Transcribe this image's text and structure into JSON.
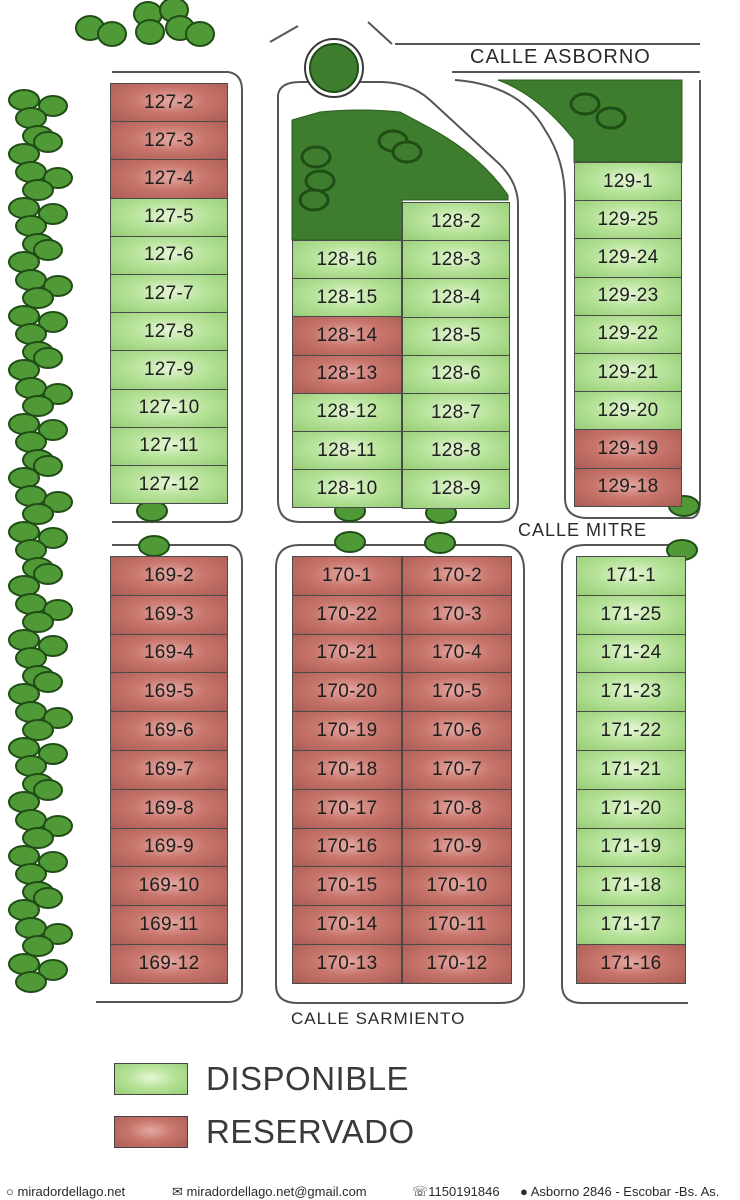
{
  "colors": {
    "disponible": "#a8d88a",
    "reservado": "#bd6b63",
    "green_area": "#3e7d2e",
    "tree": "#4f9a37",
    "tree_outline": "#1f4d15"
  },
  "streets": {
    "asborno": "CALLE ASBORNO",
    "mitre": "CALLE MITRE",
    "sarmiento": "CALLE SARMIENTO"
  },
  "legend": {
    "disponible": "DISPONIBLE",
    "reservado": "RESERVADO"
  },
  "footer": {
    "website": "miradordellago.net",
    "email": "miradordellago.net@gmail.com",
    "phone": "1150191846",
    "address": "Asborno 2846 - Escobar -Bs. As."
  },
  "blocks": {
    "b127": [
      {
        "id": "127-2",
        "status": "reservado"
      },
      {
        "id": "127-3",
        "status": "reservado"
      },
      {
        "id": "127-4",
        "status": "reservado"
      },
      {
        "id": "127-5",
        "status": "disponible"
      },
      {
        "id": "127-6",
        "status": "disponible"
      },
      {
        "id": "127-7",
        "status": "disponible"
      },
      {
        "id": "127-8",
        "status": "disponible"
      },
      {
        "id": "127-9",
        "status": "disponible"
      },
      {
        "id": "127-10",
        "status": "disponible"
      },
      {
        "id": "127-11",
        "status": "disponible"
      },
      {
        "id": "127-12",
        "status": "disponible"
      }
    ],
    "b128_left": [
      {
        "id": "128-16",
        "status": "disponible"
      },
      {
        "id": "128-15",
        "status": "disponible"
      },
      {
        "id": "128-14",
        "status": "reservado"
      },
      {
        "id": "128-13",
        "status": "reservado"
      },
      {
        "id": "128-12",
        "status": "disponible"
      },
      {
        "id": "128-11",
        "status": "disponible"
      },
      {
        "id": "128-10",
        "status": "disponible"
      }
    ],
    "b128_right": [
      {
        "id": "128-2",
        "status": "disponible"
      },
      {
        "id": "128-3",
        "status": "disponible"
      },
      {
        "id": "128-4",
        "status": "disponible"
      },
      {
        "id": "128-5",
        "status": "disponible"
      },
      {
        "id": "128-6",
        "status": "disponible"
      },
      {
        "id": "128-7",
        "status": "disponible"
      },
      {
        "id": "128-8",
        "status": "disponible"
      },
      {
        "id": "128-9",
        "status": "disponible"
      }
    ],
    "b129": [
      {
        "id": "129-1",
        "status": "disponible"
      },
      {
        "id": "129-25",
        "status": "disponible"
      },
      {
        "id": "129-24",
        "status": "disponible"
      },
      {
        "id": "129-23",
        "status": "disponible"
      },
      {
        "id": "129-22",
        "status": "disponible"
      },
      {
        "id": "129-21",
        "status": "disponible"
      },
      {
        "id": "129-20",
        "status": "disponible"
      },
      {
        "id": "129-19",
        "status": "reservado"
      },
      {
        "id": "129-18",
        "status": "reservado"
      }
    ],
    "b169": [
      {
        "id": "169-2",
        "status": "reservado"
      },
      {
        "id": "169-3",
        "status": "reservado"
      },
      {
        "id": "169-4",
        "status": "reservado"
      },
      {
        "id": "169-5",
        "status": "reservado"
      },
      {
        "id": "169-6",
        "status": "reservado"
      },
      {
        "id": "169-7",
        "status": "reservado"
      },
      {
        "id": "169-8",
        "status": "reservado"
      },
      {
        "id": "169-9",
        "status": "reservado"
      },
      {
        "id": "169-10",
        "status": "reservado"
      },
      {
        "id": "169-11",
        "status": "reservado"
      },
      {
        "id": "169-12",
        "status": "reservado"
      }
    ],
    "b170_left": [
      {
        "id": "170-1",
        "status": "reservado"
      },
      {
        "id": "170-22",
        "status": "reservado"
      },
      {
        "id": "170-21",
        "status": "reservado"
      },
      {
        "id": "170-20",
        "status": "reservado"
      },
      {
        "id": "170-19",
        "status": "reservado"
      },
      {
        "id": "170-18",
        "status": "reservado"
      },
      {
        "id": "170-17",
        "status": "reservado"
      },
      {
        "id": "170-16",
        "status": "reservado"
      },
      {
        "id": "170-15",
        "status": "reservado"
      },
      {
        "id": "170-14",
        "status": "reservado"
      },
      {
        "id": "170-13",
        "status": "reservado"
      }
    ],
    "b170_right": [
      {
        "id": "170-2",
        "status": "reservado"
      },
      {
        "id": "170-3",
        "status": "reservado"
      },
      {
        "id": "170-4",
        "status": "reservado"
      },
      {
        "id": "170-5",
        "status": "reservado"
      },
      {
        "id": "170-6",
        "status": "reservado"
      },
      {
        "id": "170-7",
        "status": "reservado"
      },
      {
        "id": "170-8",
        "status": "reservado"
      },
      {
        "id": "170-9",
        "status": "reservado"
      },
      {
        "id": "170-10",
        "status": "reservado"
      },
      {
        "id": "170-11",
        "status": "reservado"
      },
      {
        "id": "170-12",
        "status": "reservado"
      }
    ],
    "b171": [
      {
        "id": "171-1",
        "status": "disponible"
      },
      {
        "id": "171-25",
        "status": "disponible"
      },
      {
        "id": "171-24",
        "status": "disponible"
      },
      {
        "id": "171-23",
        "status": "disponible"
      },
      {
        "id": "171-22",
        "status": "disponible"
      },
      {
        "id": "171-21",
        "status": "disponible"
      },
      {
        "id": "171-20",
        "status": "disponible"
      },
      {
        "id": "171-19",
        "status": "disponible"
      },
      {
        "id": "171-18",
        "status": "disponible"
      },
      {
        "id": "171-17",
        "status": "disponible"
      },
      {
        "id": "171-16",
        "status": "reservado"
      }
    ]
  }
}
